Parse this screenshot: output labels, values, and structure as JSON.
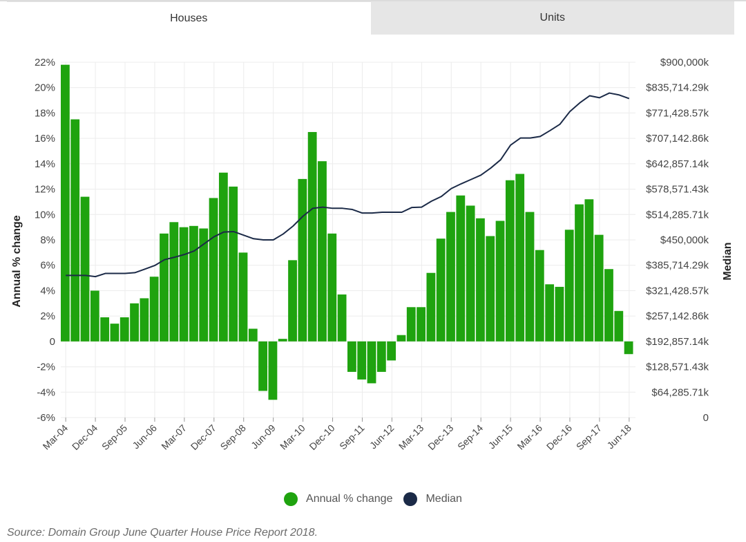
{
  "tabs": [
    {
      "label": "Houses",
      "active": true
    },
    {
      "label": "Units",
      "active": false
    }
  ],
  "legend": {
    "bar_label": "Annual % change",
    "line_label": "Median"
  },
  "source": "Source: Domain Group June Quarter House Price Report 2018.",
  "colors": {
    "bar": "#1fa30f",
    "line": "#1b2a47",
    "grid": "#ececec"
  },
  "chart_data": {
    "type": "bar",
    "quarters_start": "Mar-04",
    "x_tick_labels": [
      "Mar-04",
      "Dec-04",
      "Sep-05",
      "Jun-06",
      "Mar-07",
      "Dec-07",
      "Sep-08",
      "Jun-09",
      "Mar-10",
      "Dec-10",
      "Sep-11",
      "Jun-12",
      "Mar-13",
      "Dec-13",
      "Sep-14",
      "Jun-15",
      "Mar-16",
      "Dec-16",
      "Sep-17",
      "Jun-18"
    ],
    "ylabel": "Annual % change",
    "y2label": "Median",
    "y_ticks": [
      "22%",
      "20%",
      "18%",
      "16%",
      "14%",
      "12%",
      "10%",
      "8%",
      "6%",
      "4%",
      "2%",
      "0",
      "-2%",
      "-4%",
      "-6%"
    ],
    "y2_ticks": [
      "$900,000k",
      "$835,714.29k",
      "$771,428.57k",
      "$707,142.86k",
      "$642,857.14k",
      "$578,571.43k",
      "$514,285.71k",
      "$450,000k",
      "$385,714.29k",
      "$321,428.57k",
      "$257,142.86k",
      "$192,857.14k",
      "$128,571.43k",
      "$64,285.71k",
      "0"
    ],
    "ylim": [
      -6,
      22
    ],
    "y2lim": [
      0,
      900000
    ],
    "series": [
      {
        "name": "Annual % change",
        "type": "bar",
        "values": [
          21.8,
          17.5,
          11.4,
          4.0,
          1.9,
          1.4,
          1.9,
          3.0,
          3.4,
          5.1,
          8.5,
          9.4,
          9.0,
          9.1,
          8.9,
          11.3,
          13.3,
          12.2,
          7.0,
          1.0,
          -3.9,
          -4.6,
          0.2,
          6.4,
          12.8,
          16.5,
          14.2,
          8.5,
          3.7,
          -2.4,
          -3.0,
          -3.3,
          -2.4,
          -1.5,
          0.5,
          2.7,
          2.7,
          5.4,
          8.1,
          10.2,
          11.5,
          10.7,
          9.7,
          8.3,
          9.5,
          12.7,
          13.2,
          10.2,
          7.2,
          4.5,
          4.3,
          8.8,
          10.8,
          11.2,
          8.4,
          5.7,
          2.4,
          -1.0
        ]
      },
      {
        "name": "Median",
        "type": "line",
        "axis": "right",
        "values": [
          360000,
          360000,
          360000,
          357000,
          365000,
          365000,
          365000,
          367000,
          376000,
          385000,
          400000,
          406000,
          413000,
          422000,
          440000,
          458000,
          470000,
          471000,
          462000,
          453000,
          450000,
          450000,
          465000,
          485000,
          510000,
          530000,
          533000,
          530000,
          530000,
          527000,
          518000,
          518000,
          520000,
          520000,
          520000,
          532000,
          533000,
          548000,
          560000,
          580000,
          592000,
          603000,
          614000,
          632000,
          653000,
          690000,
          708000,
          708000,
          712000,
          727000,
          743000,
          775000,
          797000,
          815000,
          810000,
          822000,
          817000,
          808000
        ]
      }
    ]
  }
}
